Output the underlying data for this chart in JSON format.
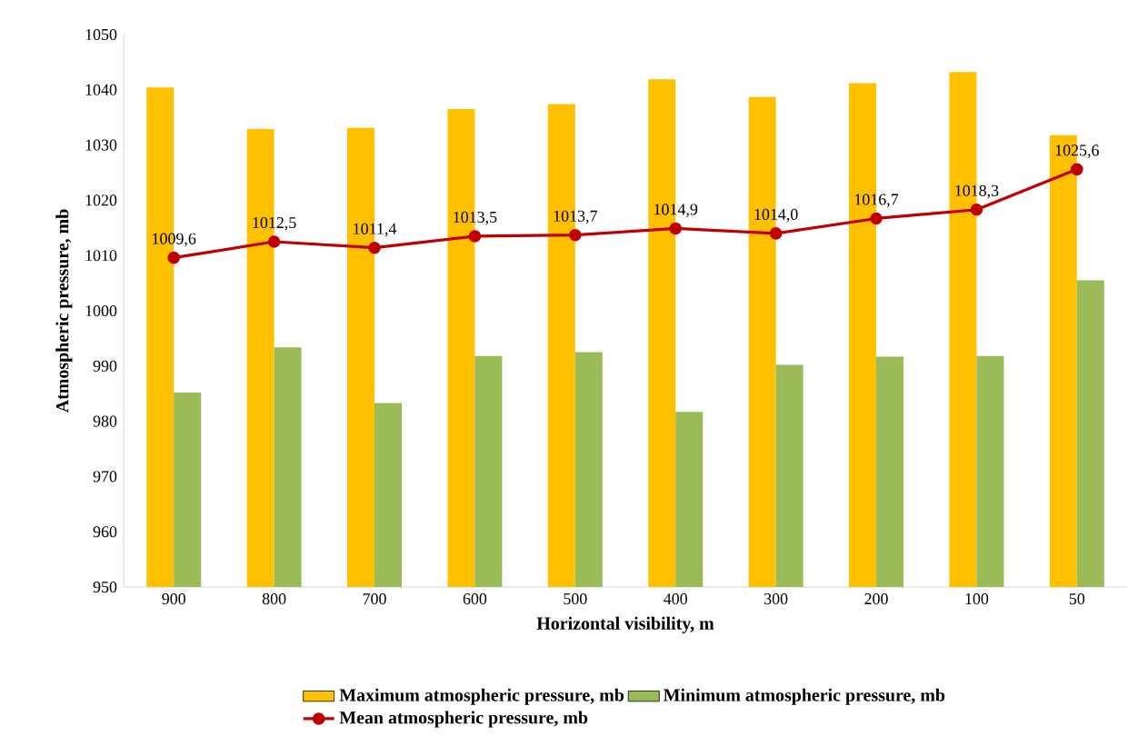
{
  "chart_data": {
    "type": "bar",
    "xlabel": "Horizontal visibility, m",
    "ylabel": "Atmospheric pressure, mb",
    "categories": [
      "900",
      "800",
      "700",
      "600",
      "500",
      "400",
      "300",
      "200",
      "100",
      "50"
    ],
    "series": [
      {
        "name": "Maximum atmospheric pressure, mb",
        "color": "#ffc000",
        "values": [
          1040.4,
          1032.9,
          1033.1,
          1036.5,
          1037.4,
          1041.9,
          1038.7,
          1041.2,
          1043.2,
          1031.8
        ]
      },
      {
        "name": "Minimum atmospheric pressure, mb",
        "color": "#9bbb59",
        "values": [
          985.2,
          993.4,
          983.3,
          991.8,
          992.5,
          981.7,
          990.2,
          991.7,
          991.8,
          1005.5
        ]
      },
      {
        "name": "Mean atmospheric pressure, mb",
        "type": "line",
        "color": "#c00000",
        "marker": "circle",
        "values": [
          1009.6,
          1012.5,
          1011.4,
          1013.5,
          1013.7,
          1014.9,
          1014.0,
          1016.7,
          1018.3,
          1025.6
        ],
        "value_labels": [
          "1009,6",
          "1012,5",
          "1011,4",
          "1013,5",
          "1013,7",
          "1014,9",
          "1014,0",
          "1016,7",
          "1018,3",
          "1025,6"
        ]
      }
    ],
    "ylim": [
      950,
      1050
    ],
    "yticks": [
      950,
      960,
      970,
      980,
      990,
      1000,
      1010,
      1020,
      1030,
      1040,
      1050
    ],
    "grid": false,
    "legend": "bottom"
  }
}
